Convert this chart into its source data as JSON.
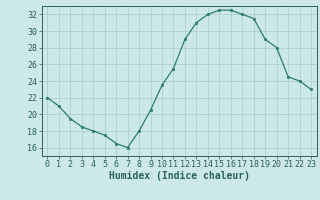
{
  "x": [
    0,
    1,
    2,
    3,
    4,
    5,
    6,
    7,
    8,
    9,
    10,
    11,
    12,
    13,
    14,
    15,
    16,
    17,
    18,
    19,
    20,
    21,
    22,
    23
  ],
  "y": [
    22,
    21,
    19.5,
    18.5,
    18,
    17.5,
    16.5,
    16,
    18,
    20.5,
    23.5,
    25.5,
    29,
    31,
    32,
    32.5,
    32.5,
    32,
    31.5,
    29,
    28,
    24.5,
    24,
    23
  ],
  "line_color": "#2e7d6b",
  "marker": "s",
  "marker_size": 2.0,
  "bg_color": "#cce8e8",
  "grid_color": "#aacccc",
  "tick_color": "#2e6060",
  "spine_color": "#2e6060",
  "xlabel": "Humidex (Indice chaleur)",
  "xlabel_fontsize": 7,
  "tick_fontsize": 6,
  "xlim": [
    -0.5,
    23.5
  ],
  "ylim": [
    15.0,
    33.0
  ],
  "yticks": [
    16,
    18,
    20,
    22,
    24,
    26,
    28,
    30,
    32
  ],
  "xticks": [
    0,
    1,
    2,
    3,
    4,
    5,
    6,
    7,
    8,
    9,
    10,
    11,
    12,
    13,
    14,
    15,
    16,
    17,
    18,
    19,
    20,
    21,
    22,
    23
  ]
}
